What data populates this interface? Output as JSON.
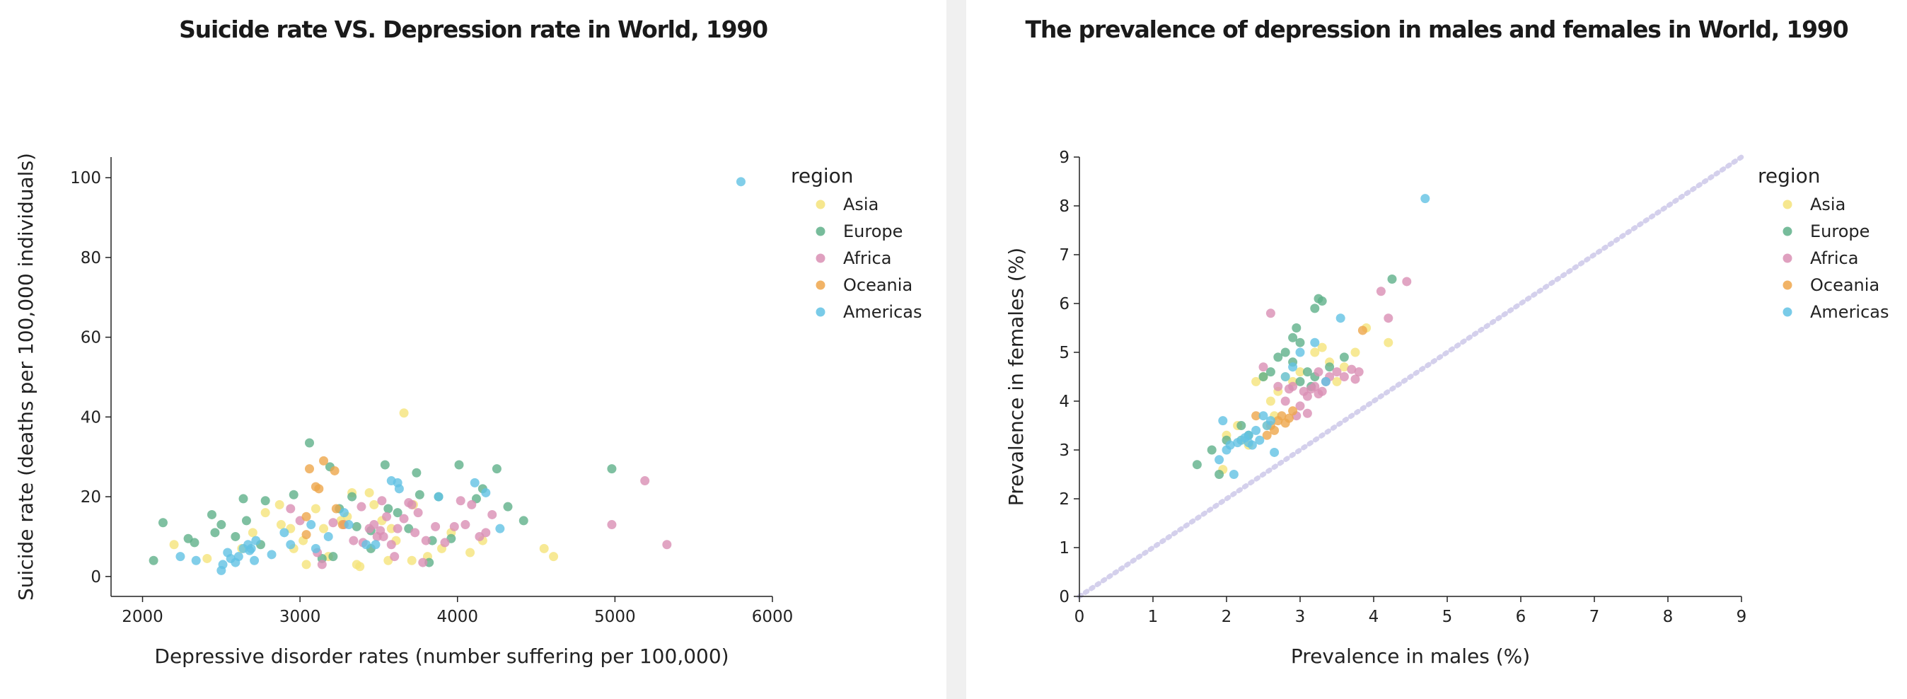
{
  "colors": {
    "Asia": "#f5e37a",
    "Europe": "#5fb08a",
    "Africa": "#d98fb4",
    "Oceania": "#eea64b",
    "Americas": "#62c2e4",
    "diagonal": "#d4d0ec"
  },
  "chart_data": [
    {
      "type": "scatter",
      "title": "Suicide rate VS. Depression rate in World, 1990",
      "xlabel": "Depressive disorder rates (number suffering per 100,000)",
      "ylabel": "Suicide rate (deaths per 100,000 individuals)",
      "xlim": [
        1800,
        6000
      ],
      "ylim": [
        -5,
        105
      ],
      "xticks": [
        2000,
        3000,
        4000,
        5000,
        6000
      ],
      "yticks": [
        0,
        20,
        40,
        60,
        80,
        100
      ],
      "grid": false,
      "legend": {
        "title": "region",
        "placement": "right",
        "entries": [
          "Asia",
          "Europe",
          "Africa",
          "Oceania",
          "Americas"
        ]
      },
      "series": [
        {
          "name": "Asia",
          "points": [
            [
              2200,
              8
            ],
            [
              2410,
              4.5
            ],
            [
              2630,
              7
            ],
            [
              2700,
              11
            ],
            [
              2780,
              16
            ],
            [
              2870,
              18
            ],
            [
              2940,
              12
            ],
            [
              3020,
              9
            ],
            [
              3100,
              17
            ],
            [
              3180,
              5
            ],
            [
              3260,
              14
            ],
            [
              3330,
              21
            ],
            [
              3360,
              3
            ],
            [
              3380,
              2.5
            ],
            [
              3440,
              21
            ],
            [
              3520,
              14
            ],
            [
              3560,
              4
            ],
            [
              3610,
              9
            ],
            [
              3660,
              41
            ],
            [
              3710,
              4
            ],
            [
              3720,
              18
            ],
            [
              3810,
              5
            ],
            [
              3900,
              7
            ],
            [
              3960,
              11
            ],
            [
              4080,
              6
            ],
            [
              4160,
              9
            ],
            [
              4550,
              7
            ],
            [
              4610,
              5
            ],
            [
              2880,
              13
            ],
            [
              3150,
              12
            ],
            [
              3470,
              18
            ],
            [
              3040,
              3
            ],
            [
              2960,
              7
            ],
            [
              3300,
              15
            ],
            [
              3580,
              12
            ]
          ]
        },
        {
          "name": "Europe",
          "points": [
            [
              2070,
              4
            ],
            [
              2130,
              13.5
            ],
            [
              2290,
              9.5
            ],
            [
              2330,
              8.5
            ],
            [
              2440,
              15.5
            ],
            [
              2460,
              11
            ],
            [
              2590,
              10
            ],
            [
              2640,
              19.5
            ],
            [
              2660,
              14
            ],
            [
              2780,
              19
            ],
            [
              2960,
              20.5
            ],
            [
              3060,
              33.5
            ],
            [
              3140,
              4.5
            ],
            [
              3190,
              27.5
            ],
            [
              3210,
              5
            ],
            [
              3330,
              20
            ],
            [
              3360,
              12.5
            ],
            [
              3450,
              11.5
            ],
            [
              3540,
              28
            ],
            [
              3560,
              17
            ],
            [
              3690,
              12
            ],
            [
              3740,
              26
            ],
            [
              3760,
              20.5
            ],
            [
              3820,
              3.5
            ],
            [
              3840,
              9
            ],
            [
              3880,
              20
            ],
            [
              3960,
              9.5
            ],
            [
              4010,
              28
            ],
            [
              4120,
              19.5
            ],
            [
              4160,
              22
            ],
            [
              4250,
              27
            ],
            [
              4320,
              17.5
            ],
            [
              4420,
              14
            ],
            [
              4980,
              27
            ],
            [
              2500,
              13
            ],
            [
              2750,
              8
            ],
            [
              3250,
              17
            ],
            [
              3450,
              7
            ],
            [
              3620,
              16
            ]
          ]
        },
        {
          "name": "Africa",
          "points": [
            [
              3110,
              6
            ],
            [
              3140,
              3
            ],
            [
              3210,
              13.5
            ],
            [
              3340,
              9
            ],
            [
              3390,
              17.5
            ],
            [
              3400,
              8.5
            ],
            [
              3440,
              12
            ],
            [
              3470,
              13
            ],
            [
              3490,
              10
            ],
            [
              3510,
              11.5
            ],
            [
              3530,
              10
            ],
            [
              3550,
              15
            ],
            [
              3580,
              8
            ],
            [
              3600,
              5
            ],
            [
              3620,
              12
            ],
            [
              3660,
              14.5
            ],
            [
              3690,
              18.5
            ],
            [
              3710,
              18
            ],
            [
              3730,
              11
            ],
            [
              3750,
              16
            ],
            [
              3780,
              3.5
            ],
            [
              3800,
              9
            ],
            [
              3860,
              12.5
            ],
            [
              3920,
              8.5
            ],
            [
              3980,
              12.5
            ],
            [
              4020,
              19
            ],
            [
              4050,
              13
            ],
            [
              4090,
              18
            ],
            [
              4140,
              10
            ],
            [
              4180,
              11
            ],
            [
              4220,
              15.5
            ],
            [
              4980,
              13
            ],
            [
              5190,
              24
            ],
            [
              5330,
              8
            ],
            [
              3000,
              14
            ],
            [
              2940,
              17
            ],
            [
              3280,
              13
            ],
            [
              3520,
              19
            ]
          ]
        },
        {
          "name": "Oceania",
          "points": [
            [
              3040,
              10.5
            ],
            [
              3060,
              27
            ],
            [
              3100,
              22.5
            ],
            [
              3120,
              22
            ],
            [
              3150,
              29
            ],
            [
              3220,
              26.5
            ],
            [
              3230,
              17
            ],
            [
              3270,
              13
            ],
            [
              3040,
              15
            ]
          ]
        },
        {
          "name": "Americas",
          "points": [
            [
              2240,
              5
            ],
            [
              2340,
              4
            ],
            [
              2500,
              1.5
            ],
            [
              2510,
              3
            ],
            [
              2540,
              6
            ],
            [
              2560,
              4.5
            ],
            [
              2610,
              5
            ],
            [
              2640,
              7
            ],
            [
              2670,
              8
            ],
            [
              2690,
              7
            ],
            [
              2710,
              4
            ],
            [
              2720,
              9
            ],
            [
              2820,
              5.5
            ],
            [
              2900,
              11
            ],
            [
              2940,
              8
            ],
            [
              3070,
              13
            ],
            [
              3100,
              7
            ],
            [
              3180,
              10
            ],
            [
              3280,
              16
            ],
            [
              3310,
              13
            ],
            [
              3480,
              8
            ],
            [
              3580,
              24
            ],
            [
              3620,
              23.5
            ],
            [
              3630,
              22
            ],
            [
              3880,
              20
            ],
            [
              4110,
              23.5
            ],
            [
              4180,
              21
            ],
            [
              4270,
              12
            ],
            [
              5800,
              99
            ],
            [
              2590,
              3.5
            ],
            [
              2680,
              6.5
            ],
            [
              3420,
              8
            ]
          ]
        }
      ]
    },
    {
      "type": "scatter",
      "title": "The prevalence of depression in males and females in World, 1990",
      "xlabel": "Prevalence in males (%)",
      "ylabel": "Prevalence in females (%)",
      "xlim": [
        0,
        9
      ],
      "ylim": [
        0,
        9
      ],
      "xticks": [
        0,
        1,
        2,
        3,
        4,
        5,
        6,
        7,
        8,
        9
      ],
      "yticks": [
        0,
        1,
        2,
        3,
        4,
        5,
        6,
        7,
        8,
        9
      ],
      "grid": false,
      "reference_line": {
        "type": "y=x",
        "style": "dotted"
      },
      "legend": {
        "title": "region",
        "placement": "right",
        "entries": [
          "Asia",
          "Europe",
          "Africa",
          "Oceania",
          "Americas"
        ]
      },
      "series": [
        {
          "name": "Asia",
          "points": [
            [
              1.95,
              2.6
            ],
            [
              2.0,
              3.3
            ],
            [
              2.15,
              3.5
            ],
            [
              2.2,
              3.2
            ],
            [
              2.4,
              4.4
            ],
            [
              2.5,
              4.5
            ],
            [
              2.55,
              3.5
            ],
            [
              2.6,
              4.0
            ],
            [
              2.7,
              4.2
            ],
            [
              2.8,
              4.5
            ],
            [
              2.9,
              4.4
            ],
            [
              3.0,
              4.6
            ],
            [
              3.2,
              5.0
            ],
            [
              3.3,
              5.1
            ],
            [
              3.4,
              4.8
            ],
            [
              3.5,
              4.4
            ],
            [
              3.6,
              4.7
            ],
            [
              3.75,
              5.0
            ],
            [
              3.9,
              5.5
            ],
            [
              4.2,
              5.2
            ],
            [
              2.3,
              3.1
            ],
            [
              2.65,
              3.7
            ]
          ]
        },
        {
          "name": "Europe",
          "points": [
            [
              1.6,
              2.7
            ],
            [
              1.8,
              3.0
            ],
            [
              1.9,
              2.5
            ],
            [
              2.0,
              3.2
            ],
            [
              2.2,
              3.5
            ],
            [
              2.3,
              3.3
            ],
            [
              2.5,
              4.5
            ],
            [
              2.6,
              4.6
            ],
            [
              2.7,
              4.9
            ],
            [
              2.8,
              5.0
            ],
            [
              2.9,
              5.3
            ],
            [
              2.95,
              5.5
            ],
            [
              3.0,
              5.2
            ],
            [
              3.1,
              4.6
            ],
            [
              3.2,
              5.9
            ],
            [
              3.25,
              6.1
            ],
            [
              3.3,
              6.05
            ],
            [
              3.0,
              4.4
            ],
            [
              3.2,
              4.5
            ],
            [
              3.4,
              4.7
            ],
            [
              3.6,
              4.9
            ],
            [
              4.25,
              6.5
            ],
            [
              2.9,
              4.8
            ],
            [
              3.15,
              4.3
            ]
          ]
        },
        {
          "name": "Africa",
          "points": [
            [
              2.5,
              4.7
            ],
            [
              2.6,
              5.8
            ],
            [
              2.7,
              4.3
            ],
            [
              2.8,
              4.0
            ],
            [
              2.85,
              4.25
            ],
            [
              2.9,
              4.3
            ],
            [
              3.0,
              3.9
            ],
            [
              3.05,
              4.2
            ],
            [
              3.1,
              4.1
            ],
            [
              3.15,
              4.25
            ],
            [
              3.2,
              4.3
            ],
            [
              3.25,
              4.15
            ],
            [
              3.3,
              4.2
            ],
            [
              3.35,
              4.4
            ],
            [
              3.4,
              4.5
            ],
            [
              3.5,
              4.6
            ],
            [
              3.6,
              4.5
            ],
            [
              3.7,
              4.65
            ],
            [
              3.75,
              4.45
            ],
            [
              3.8,
              4.6
            ],
            [
              4.1,
              6.25
            ],
            [
              4.2,
              5.7
            ],
            [
              4.45,
              6.45
            ],
            [
              2.95,
              3.7
            ],
            [
              3.1,
              3.75
            ],
            [
              3.25,
              4.6
            ]
          ]
        },
        {
          "name": "Oceania",
          "points": [
            [
              2.4,
              3.7
            ],
            [
              2.55,
              3.3
            ],
            [
              2.6,
              3.5
            ],
            [
              2.65,
              3.4
            ],
            [
              2.7,
              3.6
            ],
            [
              2.75,
              3.7
            ],
            [
              2.8,
              3.55
            ],
            [
              2.85,
              3.65
            ],
            [
              2.9,
              3.8
            ],
            [
              3.85,
              5.45
            ]
          ]
        },
        {
          "name": "Americas",
          "points": [
            [
              1.9,
              2.8
            ],
            [
              1.95,
              3.6
            ],
            [
              2.0,
              3.0
            ],
            [
              2.05,
              3.1
            ],
            [
              2.1,
              2.5
            ],
            [
              2.15,
              3.15
            ],
            [
              2.2,
              3.2
            ],
            [
              2.25,
              3.25
            ],
            [
              2.3,
              3.3
            ],
            [
              2.35,
              3.1
            ],
            [
              2.4,
              3.4
            ],
            [
              2.45,
              3.2
            ],
            [
              2.5,
              3.7
            ],
            [
              2.55,
              3.5
            ],
            [
              2.6,
              3.6
            ],
            [
              2.65,
              2.95
            ],
            [
              2.8,
              4.5
            ],
            [
              2.9,
              4.7
            ],
            [
              3.0,
              5.0
            ],
            [
              3.2,
              5.2
            ],
            [
              3.35,
              4.4
            ],
            [
              3.55,
              5.7
            ],
            [
              4.7,
              8.15
            ],
            [
              2.3,
              3.15
            ]
          ]
        }
      ]
    }
  ]
}
